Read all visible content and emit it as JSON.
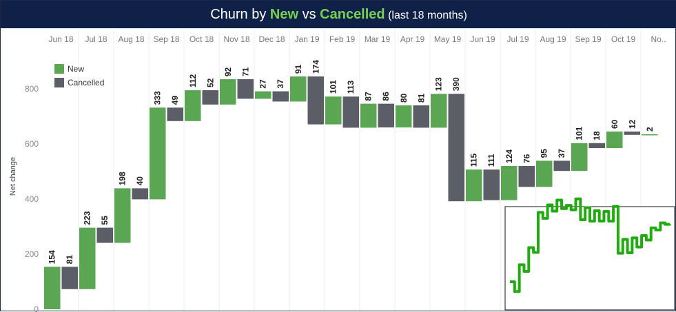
{
  "title": {
    "prefix": "Churn by ",
    "new_word": "New",
    "mid": " vs ",
    "cancelled_word": "Cancelled",
    "suffix": " (last 18 months)"
  },
  "colors": {
    "title_bg": "#0f2147",
    "highlight": "#7ad151",
    "new": "#5aa652",
    "cancelled": "#5b5e66",
    "inset_line": "#22aa11"
  },
  "chart_data": {
    "type": "bar",
    "subtype": "waterfall",
    "ylabel": "Net change",
    "ylim": [
      0,
      930
    ],
    "yticks": [
      0,
      200,
      400,
      600,
      800
    ],
    "legend": {
      "placement": "top-left",
      "entries": [
        {
          "name": "New",
          "color": "#5aa652"
        },
        {
          "name": "Cancelled",
          "color": "#5b5e66"
        }
      ]
    },
    "months": [
      "Jun 18",
      "Jul 18",
      "Aug 18",
      "Sep 18",
      "Oct 18",
      "Nov 18",
      "Dec 18",
      "Jan 19",
      "Feb 19",
      "Mar 19",
      "Apr 19",
      "May 19",
      "Jun 19",
      "Jul 19",
      "Aug 19",
      "Sep 19",
      "Oct 19",
      "No.."
    ],
    "steps": [
      {
        "month": "Jun 18",
        "type": "new",
        "value": 154
      },
      {
        "month": "Jun 18",
        "type": "cancelled",
        "value": 81
      },
      {
        "month": "Jul 18",
        "type": "new",
        "value": 223
      },
      {
        "month": "Jul 18",
        "type": "cancelled",
        "value": 55
      },
      {
        "month": "Aug 18",
        "type": "new",
        "value": 198
      },
      {
        "month": "Aug 18",
        "type": "cancelled",
        "value": 40
      },
      {
        "month": "Sep 18",
        "type": "new",
        "value": 333
      },
      {
        "month": "Sep 18",
        "type": "cancelled",
        "value": 49
      },
      {
        "month": "Oct 18",
        "type": "new",
        "value": 112
      },
      {
        "month": "Oct 18",
        "type": "cancelled",
        "value": 52
      },
      {
        "month": "Nov 18",
        "type": "new",
        "value": 92
      },
      {
        "month": "Nov 18",
        "type": "cancelled",
        "value": 71
      },
      {
        "month": "Dec 18",
        "type": "new",
        "value": 27
      },
      {
        "month": "Dec 18",
        "type": "cancelled",
        "value": 37
      },
      {
        "month": "Jan 19",
        "type": "new",
        "value": 91
      },
      {
        "month": "Jan 19",
        "type": "cancelled",
        "value": 174
      },
      {
        "month": "Feb 19",
        "type": "new",
        "value": 101
      },
      {
        "month": "Feb 19",
        "type": "cancelled",
        "value": 113
      },
      {
        "month": "Mar 19",
        "type": "new",
        "value": 87
      },
      {
        "month": "Mar 19",
        "type": "cancelled",
        "value": 86
      },
      {
        "month": "Apr 19",
        "type": "new",
        "value": 80
      },
      {
        "month": "Apr 19",
        "type": "cancelled",
        "value": 81
      },
      {
        "month": "May 19",
        "type": "new",
        "value": 123
      },
      {
        "month": "May 19",
        "type": "cancelled",
        "value": 390
      },
      {
        "month": "Jun 19",
        "type": "new",
        "value": 115
      },
      {
        "month": "Jun 19",
        "type": "cancelled",
        "value": 111
      },
      {
        "month": "Jul 19",
        "type": "new",
        "value": 124
      },
      {
        "month": "Jul 19",
        "type": "cancelled",
        "value": 76
      },
      {
        "month": "Aug 19",
        "type": "new",
        "value": 95
      },
      {
        "month": "Aug 19",
        "type": "cancelled",
        "value": 37
      },
      {
        "month": "Sep 19",
        "type": "new",
        "value": 101
      },
      {
        "month": "Sep 19",
        "type": "cancelled",
        "value": 18
      },
      {
        "month": "Oct 19",
        "type": "new",
        "value": 60
      },
      {
        "month": "Oct 19",
        "type": "cancelled",
        "value": 12
      },
      {
        "month": "No..",
        "type": "new",
        "value": 2
      }
    ],
    "grid": {
      "vertical": true,
      "horizontal": false
    },
    "inset": {
      "type": "step-line",
      "placement": "bottom-right",
      "series": "running total"
    }
  }
}
